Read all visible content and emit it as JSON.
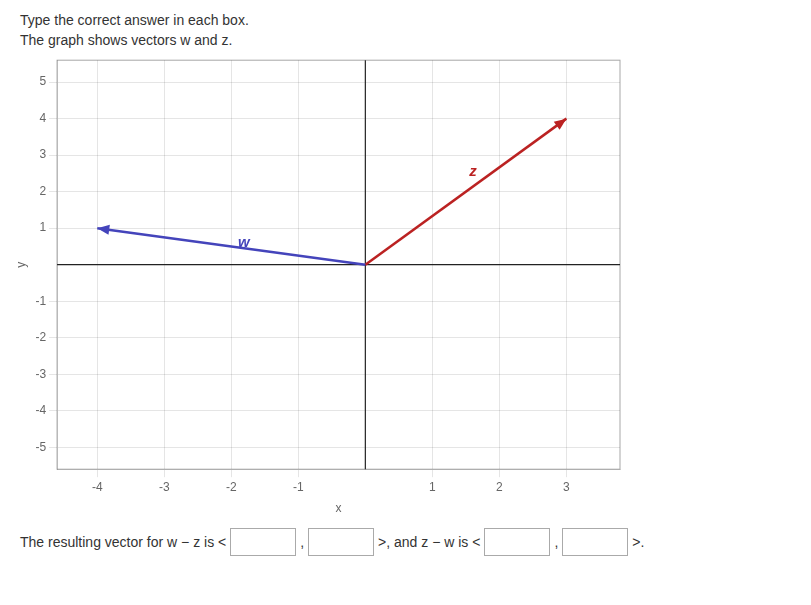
{
  "chart_data": {
    "type": "line",
    "title": "Type the correct answer in each box.",
    "subtitle": "The graph shows vectors w and z.",
    "x_label": "x",
    "y_label": "y",
    "series": [
      {
        "color": "#4444bb",
        "x": [
          0,
          -4
        ],
        "values": [
          0,
          1
        ]
      },
      {
        "color": "#bb2222",
        "x": [
          0,
          3
        ],
        "values": [
          0,
          4
        ]
      }
    ],
    "annotations": [
      {
        "text": "w",
        "x": -1.9,
        "y": 0.38,
        "color": "#4444bb"
      },
      {
        "text": "z",
        "x": 1.55,
        "y": 2.35,
        "color": "#bb2222"
      }
    ],
    "xlim": [
      -4.6,
      3.8
    ],
    "ylim": [
      -5.6,
      5.6
    ],
    "xticks": [
      -4,
      -3,
      -2,
      -1,
      1,
      2,
      3
    ],
    "yticks": [
      -5,
      -4,
      -3,
      -2,
      -1,
      1,
      2,
      3,
      4,
      5
    ],
    "grid": true,
    "footer": [
      "The resulting vector for w − z is <",
      ",",
      ">, and z − w is <",
      ",",
      ">."
    ]
  }
}
